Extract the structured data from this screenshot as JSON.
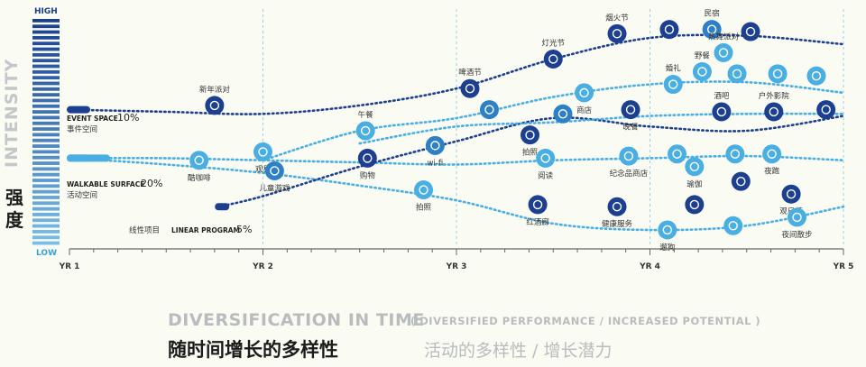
{
  "labels": {
    "high": "HIGH",
    "low": "LOW",
    "intensity_en": "INTENSITY",
    "intensity_cn_1": "强",
    "intensity_cn_2": "度",
    "title": "DIVERSIFICATION IN TIME",
    "subtitle": "( DIVERSIFIED PERFORMANCE / INCREASED POTENTIAL )",
    "title_cn": "随时间增长的多样性",
    "subtitle_cn": "活动的多样性 / 增长潜力"
  },
  "chart_data": {
    "type": "line",
    "x_ticks": [
      "YR 1",
      "YR 2",
      "YR 3",
      "YR 4",
      "YR 5"
    ],
    "xlim": [
      1,
      5
    ],
    "y_axis": {
      "top": "HIGH",
      "bottom": "LOW"
    },
    "colors": {
      "dark": "#1d3f8f",
      "mid": "#2d7fc6",
      "light": "#49aee2",
      "grid": "#9ccdea",
      "axis": "#666666"
    },
    "series": [
      {
        "name": "EVENT SPACE",
        "percent": "10%",
        "name_cn": "事件空间",
        "style": "dark",
        "x": [
          1.0,
          1.5,
          2.0,
          2.5,
          3.0,
          3.5,
          4.0,
          4.5,
          5.0
        ],
        "y": [
          0.6,
          0.59,
          0.58,
          0.62,
          0.7,
          0.84,
          0.94,
          0.95,
          0.91
        ]
      },
      {
        "name": "WALKABLE SURFACE",
        "percent": "20%",
        "name_cn": "活动空间",
        "style": "light",
        "x": [
          1.0,
          1.5,
          2.0,
          2.5,
          3.0,
          3.5,
          4.0,
          4.5,
          5.0
        ],
        "y": [
          0.37,
          0.37,
          0.36,
          0.35,
          0.34,
          0.36,
          0.37,
          0.38,
          0.36
        ]
      },
      {
        "name": "LINEAR PROGRAM",
        "percent": "5%",
        "name_cn": "线性项目",
        "style": "light",
        "x": [
          1.0,
          1.5,
          2.0,
          2.5,
          3.0,
          3.5,
          4.0,
          4.5,
          5.0
        ],
        "y": [
          0.37,
          0.34,
          0.3,
          0.24,
          0.17,
          0.06,
          0.03,
          0.05,
          0.14
        ]
      },
      {
        "name": "",
        "style": "dark",
        "x": [
          1.77,
          2.0,
          2.5,
          3.0,
          3.5,
          4.0,
          4.5,
          5.0
        ],
        "y": [
          0.14,
          0.19,
          0.33,
          0.45,
          0.56,
          0.52,
          0.5,
          0.57
        ]
      },
      {
        "name": "",
        "style": "light",
        "x": [
          2.0,
          2.5,
          3.0,
          3.5,
          4.0,
          4.5,
          5.0
        ],
        "y": [
          0.36,
          0.5,
          0.56,
          0.66,
          0.72,
          0.73,
          0.68
        ]
      },
      {
        "name": "",
        "style": "light",
        "x": [
          2.5,
          3.0,
          3.5,
          4.0,
          4.5,
          5.0
        ],
        "y": [
          0.44,
          0.52,
          0.54,
          0.57,
          0.58,
          0.58
        ]
      }
    ],
    "activities": [
      {
        "label": "新年派对",
        "icon": "party-icon",
        "style": "dark",
        "x": 1.75,
        "y": 0.62
      },
      {
        "label": "观星",
        "icon": "star-icon",
        "style": "light",
        "x": 2.0,
        "y": 0.4
      },
      {
        "label": "酷咖啡",
        "icon": "coffee-icon",
        "style": "light",
        "x": 1.67,
        "y": 0.36
      },
      {
        "label": "儿童游戏",
        "icon": "gamepad-icon",
        "style": "mid",
        "x": 2.06,
        "y": 0.31
      },
      {
        "label": "啤酒节",
        "icon": "beer-icon",
        "style": "dark",
        "x": 3.07,
        "y": 0.7
      },
      {
        "label": "午餐",
        "icon": "fork-knife-icon",
        "style": "light",
        "x": 2.53,
        "y": 0.5
      },
      {
        "label": "wi-fi",
        "icon": "wifi-icon",
        "style": "mid",
        "x": 2.89,
        "y": 0.43
      },
      {
        "label": "购物",
        "icon": "cart-icon",
        "style": "dark",
        "x": 2.54,
        "y": 0.37
      },
      {
        "label": "拍照",
        "icon": "camera-icon",
        "style": "light",
        "x": 2.83,
        "y": 0.22
      },
      {
        "label": "",
        "icon": "bike-icon",
        "style": "mid",
        "x": 3.17,
        "y": 0.6
      },
      {
        "label": "",
        "icon": "telescope-icon",
        "style": "mid",
        "x": 3.55,
        "y": 0.58
      },
      {
        "label": "拍照",
        "icon": "camera-icon",
        "style": "dark",
        "x": 3.38,
        "y": 0.48
      },
      {
        "label": "灯光节",
        "icon": "mic-icon",
        "style": "dark",
        "x": 3.5,
        "y": 0.84
      },
      {
        "label": "烟火节",
        "icon": "firework-icon",
        "style": "dark",
        "x": 3.83,
        "y": 0.96
      },
      {
        "label": "商店",
        "icon": "hanger-icon",
        "style": "light",
        "x": 3.66,
        "y": 0.68
      },
      {
        "label": "晚餐",
        "icon": "plate-icon",
        "style": "dark",
        "x": 3.9,
        "y": 0.6
      },
      {
        "label": "阅读",
        "icon": "book-icon",
        "style": "light",
        "x": 3.46,
        "y": 0.37
      },
      {
        "label": "纪念品商店",
        "icon": "gift-icon",
        "style": "light",
        "x": 3.89,
        "y": 0.38
      },
      {
        "label": "红酒廊",
        "icon": "wine-icon",
        "style": "dark",
        "x": 3.42,
        "y": 0.15
      },
      {
        "label": "健康服务",
        "icon": "health-icon",
        "style": "dark",
        "x": 3.83,
        "y": 0.14
      },
      {
        "label": "",
        "icon": "torch-icon",
        "style": "dark",
        "x": 4.1,
        "y": 0.98
      },
      {
        "label": "民宿",
        "icon": "house-icon",
        "style": "mid",
        "x": 4.32,
        "y": 0.98
      },
      {
        "label": "",
        "icon": "mic-icon",
        "style": "dark",
        "x": 4.52,
        "y": 0.97
      },
      {
        "label": "热舞派对",
        "icon": "dance-icon",
        "style": "light",
        "x": 4.38,
        "y": 0.87
      },
      {
        "label": "野餐",
        "icon": "coffee-icon",
        "style": "light",
        "x": 4.27,
        "y": 0.78
      },
      {
        "label": "",
        "icon": "plate-icon",
        "style": "light",
        "x": 4.45,
        "y": 0.77
      },
      {
        "label": "",
        "icon": "cart-icon",
        "style": "light",
        "x": 4.66,
        "y": 0.77
      },
      {
        "label": "",
        "icon": "ticket-icon",
        "style": "light",
        "x": 4.86,
        "y": 0.76
      },
      {
        "label": "婚礼",
        "icon": "ring-icon",
        "style": "light",
        "x": 4.12,
        "y": 0.72
      },
      {
        "label": "酒吧",
        "icon": "cocktail-icon",
        "style": "dark",
        "x": 4.37,
        "y": 0.59
      },
      {
        "label": "户外影院",
        "icon": "projector-icon",
        "style": "dark",
        "x": 4.64,
        "y": 0.59
      },
      {
        "label": "",
        "icon": "book-icon",
        "style": "dark",
        "x": 4.91,
        "y": 0.6
      },
      {
        "label": "",
        "icon": "fork-knife-icon",
        "style": "light",
        "x": 4.14,
        "y": 0.39
      },
      {
        "label": "",
        "icon": "frame-icon",
        "style": "light",
        "x": 4.44,
        "y": 0.39
      },
      {
        "label": "夜跑",
        "icon": "shoe-icon",
        "style": "light",
        "x": 4.63,
        "y": 0.39
      },
      {
        "label": "瑜伽",
        "icon": "yoga-icon",
        "style": "light",
        "x": 4.23,
        "y": 0.33
      },
      {
        "label": "",
        "icon": "runner-icon",
        "style": "dark",
        "x": 4.47,
        "y": 0.26
      },
      {
        "label": "观日落",
        "icon": "telescope-icon",
        "style": "dark",
        "x": 4.73,
        "y": 0.2
      },
      {
        "label": "",
        "icon": "mic-icon",
        "style": "dark",
        "x": 4.23,
        "y": 0.15
      },
      {
        "label": "遛狗",
        "icon": "dog-walk-icon",
        "style": "light",
        "x": 4.09,
        "y": 0.03
      },
      {
        "label": "",
        "icon": "health-icon",
        "style": "light",
        "x": 4.43,
        "y": 0.05
      },
      {
        "label": "夜间散步",
        "icon": "couple-icon",
        "style": "light",
        "x": 4.76,
        "y": 0.09
      }
    ]
  }
}
